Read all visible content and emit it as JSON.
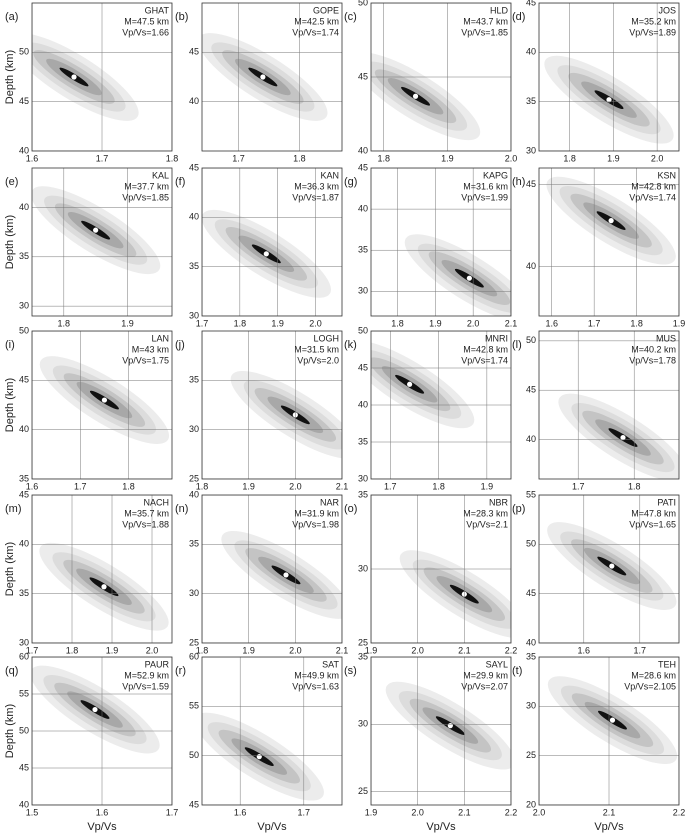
{
  "chart_data": [
    {
      "type": "scatter",
      "panel_label": "(a)",
      "station": "GHAT",
      "depth_label": "M=47.5 km",
      "ratio_label": "Vp/Vs=1.66",
      "ylabel": "Depth (km)",
      "x": [
        1.66
      ],
      "values": [
        47.5
      ],
      "xlim": [
        1.6,
        1.8
      ],
      "xticks": [
        1.6,
        1.7,
        1.8
      ],
      "ylim": [
        40,
        55
      ],
      "yticks": [
        40,
        45,
        50
      ],
      "grid": true
    },
    {
      "type": "scatter",
      "panel_label": "(b)",
      "station": "GOPE",
      "depth_label": "M=42.5 km",
      "ratio_label": "Vp/Vs=1.74",
      "x": [
        1.74
      ],
      "values": [
        42.5
      ],
      "xlim": [
        1.64,
        1.87
      ],
      "xticks": [
        1.7,
        1.8
      ],
      "ylim": [
        35,
        50
      ],
      "yticks": [
        40,
        45
      ],
      "grid": true
    },
    {
      "type": "scatter",
      "panel_label": "(c)",
      "station": "HLD",
      "depth_label": "M=43.7 km",
      "ratio_label": "Vp/Vs=1.85",
      "x": [
        1.85
      ],
      "values": [
        43.7
      ],
      "xlim": [
        1.78,
        2.0
      ],
      "xticks": [
        1.8,
        1.9,
        {
          "value": 2,
          "label": "2.0"
        }
      ],
      "ylim": [
        40,
        50
      ],
      "yticks": [
        40,
        45,
        50
      ],
      "grid": true
    },
    {
      "type": "scatter",
      "panel_label": "(d)",
      "station": "JOS",
      "depth_label": "M=35.2 km",
      "ratio_label": "Vp/Vs=1.89",
      "x": [
        1.89
      ],
      "values": [
        35.2
      ],
      "xlim": [
        1.73,
        2.05
      ],
      "xticks": [
        1.8,
        1.9,
        {
          "value": 2,
          "label": "2.0"
        }
      ],
      "ylim": [
        30,
        45
      ],
      "yticks": [
        30,
        35,
        40,
        45
      ],
      "grid": true
    },
    {
      "type": "scatter",
      "panel_label": "(e)",
      "station": "KAL",
      "depth_label": "M=37.7 km",
      "ratio_label": "Vp/Vs=1.85",
      "ylabel": "Depth (km)",
      "x": [
        1.85
      ],
      "values": [
        37.7
      ],
      "xlim": [
        1.75,
        1.97
      ],
      "xticks": [
        1.8,
        1.9
      ],
      "ylim": [
        29,
        44
      ],
      "yticks": [
        30,
        35,
        40
      ],
      "grid": true
    },
    {
      "type": "scatter",
      "panel_label": "(f)",
      "station": "KAN",
      "depth_label": "M=36.3 km",
      "ratio_label": "Vp/Vs=1.87",
      "x": [
        1.87
      ],
      "values": [
        36.3
      ],
      "xlim": [
        1.7,
        2.07
      ],
      "xticks": [
        1.7,
        1.8,
        1.9,
        {
          "value": 2,
          "label": "2.0"
        }
      ],
      "ylim": [
        30,
        45
      ],
      "yticks": [
        30,
        35,
        40,
        45
      ],
      "grid": true
    },
    {
      "type": "scatter",
      "panel_label": "(g)",
      "station": "KAPG",
      "depth_label": "M=31.6 km",
      "ratio_label": "Vp/Vs=1.99",
      "x": [
        1.99
      ],
      "values": [
        31.6
      ],
      "xlim": [
        1.73,
        2.1
      ],
      "xticks": [
        1.8,
        1.9,
        {
          "value": 2,
          "label": "2.0"
        },
        2.1
      ],
      "ylim": [
        27,
        45
      ],
      "yticks": [
        30,
        35,
        40,
        45
      ],
      "grid": true
    },
    {
      "type": "scatter",
      "panel_label": "(h)",
      "station": "KSN",
      "depth_label": "M=42.8 km",
      "ratio_label": "Vp/Vs=1.74",
      "x": [
        1.74
      ],
      "values": [
        42.8
      ],
      "xlim": [
        1.57,
        1.9
      ],
      "xticks": [
        1.6,
        1.7,
        1.8,
        1.9
      ],
      "ylim": [
        37,
        46
      ],
      "yticks": [
        40,
        45
      ],
      "grid": true
    },
    {
      "type": "scatter",
      "panel_label": "(i)",
      "station": "LAN",
      "depth_label": "M=43 km",
      "ratio_label": "Vp/Vs=1.75",
      "ylabel": "Depth (km)",
      "x": [
        1.75
      ],
      "values": [
        43
      ],
      "xlim": [
        1.6,
        1.89
      ],
      "xticks": [
        1.6,
        1.7,
        1.8
      ],
      "ylim": [
        35,
        50
      ],
      "yticks": [
        35,
        40,
        45,
        50
      ],
      "grid": true
    },
    {
      "type": "scatter",
      "panel_label": "(j)",
      "station": "LOGH",
      "depth_label": "M=31.5 km",
      "ratio_label": "Vp/Vs=2.0",
      "x": [
        2.0
      ],
      "values": [
        31.5
      ],
      "xlim": [
        1.8,
        2.1
      ],
      "xticks": [
        1.8,
        1.9,
        {
          "value": 2,
          "label": "2.0"
        },
        2.1
      ],
      "ylim": [
        25,
        40
      ],
      "yticks": [
        25,
        30,
        35
      ],
      "grid": true
    },
    {
      "type": "scatter",
      "panel_label": "(k)",
      "station": "MNRI",
      "depth_label": "M=42.8 km",
      "ratio_label": "Vp/Vs=1.74",
      "x": [
        1.74
      ],
      "values": [
        42.8
      ],
      "xlim": [
        1.66,
        1.95
      ],
      "xticks": [
        1.7,
        1.8,
        1.9
      ],
      "ylim": [
        30,
        50
      ],
      "yticks": [
        30,
        35,
        40,
        45,
        50
      ],
      "grid": true
    },
    {
      "type": "scatter",
      "panel_label": "(l)",
      "station": "MUS",
      "depth_label": "M=40.2 km",
      "ratio_label": "Vp/Vs=1.78",
      "x": [
        1.78
      ],
      "values": [
        40.2
      ],
      "xlim": [
        1.63,
        1.88
      ],
      "xticks": [
        1.7,
        1.8
      ],
      "ylim": [
        36,
        51
      ],
      "yticks": [
        40,
        45,
        50
      ],
      "grid": true
    },
    {
      "type": "scatter",
      "panel_label": "(m)",
      "station": "NACH",
      "depth_label": "M=35.7 km",
      "ratio_label": "Vp/Vs=1.88",
      "ylabel": "Depth (km)",
      "x": [
        1.88
      ],
      "values": [
        35.7
      ],
      "xlim": [
        1.7,
        2.05
      ],
      "xticks": [
        1.7,
        1.8,
        1.9,
        {
          "value": 2,
          "label": "2.0"
        }
      ],
      "ylim": [
        30,
        45
      ],
      "yticks": [
        30,
        35,
        40,
        45
      ],
      "grid": true
    },
    {
      "type": "scatter",
      "panel_label": "(n)",
      "station": "NAR",
      "depth_label": "M=31.9 km",
      "ratio_label": "Vp/Vs=1.98",
      "x": [
        1.98
      ],
      "values": [
        31.9
      ],
      "xlim": [
        1.8,
        2.1
      ],
      "xticks": [
        1.8,
        1.9,
        {
          "value": 2,
          "label": "2.0"
        },
        2.1
      ],
      "ylim": [
        25,
        40
      ],
      "yticks": [
        25,
        30,
        35,
        40
      ],
      "grid": true
    },
    {
      "type": "scatter",
      "panel_label": "(o)",
      "station": "NBR",
      "depth_label": "M=28.3 km",
      "ratio_label": "Vp/Vs=2.1",
      "x": [
        2.1
      ],
      "values": [
        28.3
      ],
      "xlim": [
        1.9,
        2.2
      ],
      "xticks": [
        1.9,
        {
          "value": 2,
          "label": "2.0"
        },
        2.1,
        2.2
      ],
      "ylim": [
        25,
        35
      ],
      "yticks": [
        25,
        30,
        35
      ],
      "grid": true
    },
    {
      "type": "scatter",
      "panel_label": "(p)",
      "station": "PATI",
      "depth_label": "M=47.8 km",
      "ratio_label": "Vp/Vs=1.65",
      "x": [
        1.65
      ],
      "values": [
        47.8
      ],
      "xlim": [
        1.52,
        1.77
      ],
      "xticks": [
        1.6,
        1.7
      ],
      "ylim": [
        40,
        55
      ],
      "yticks": [
        40,
        45,
        50,
        55
      ],
      "grid": true
    },
    {
      "type": "scatter",
      "panel_label": "(q)",
      "station": "PAUR",
      "depth_label": "M=52.9 km",
      "ratio_label": "Vp/Vs=1.59",
      "ylabel": "Depth (km)",
      "xlabel": "Vp/Vs",
      "x": [
        1.59
      ],
      "values": [
        52.9
      ],
      "xlim": [
        1.5,
        1.7
      ],
      "xticks": [
        1.5,
        1.6,
        1.7
      ],
      "ylim": [
        40,
        60
      ],
      "yticks": [
        40,
        45,
        50,
        55,
        60
      ],
      "grid": true
    },
    {
      "type": "scatter",
      "panel_label": "(r)",
      "station": "SAT",
      "depth_label": "M=49.9 km",
      "ratio_label": "Vp/Vs=1.63",
      "xlabel": "Vp/Vs",
      "x": [
        1.63
      ],
      "values": [
        49.9
      ],
      "xlim": [
        1.54,
        1.76
      ],
      "xticks": [
        1.6,
        1.7
      ],
      "ylim": [
        45,
        60
      ],
      "yticks": [
        45,
        50,
        55,
        60
      ],
      "grid": true
    },
    {
      "type": "scatter",
      "panel_label": "(s)",
      "station": "SAYL",
      "depth_label": "M=29.9 km",
      "ratio_label": "Vp/Vs=2.07",
      "xlabel": "Vp/Vs",
      "x": [
        2.07
      ],
      "values": [
        29.9
      ],
      "xlim": [
        1.9,
        2.2
      ],
      "xticks": [
        1.9,
        {
          "value": 2,
          "label": "2.0"
        },
        2.1,
        2.2
      ],
      "ylim": [
        24,
        35
      ],
      "yticks": [
        25,
        30,
        35
      ],
      "grid": true
    },
    {
      "type": "scatter",
      "panel_label": "(t)",
      "station": "TEH",
      "depth_label": "M=28.6 km",
      "ratio_label": "Vp/Vs=2.105",
      "xlabel": "Vp/Vs",
      "x": [
        2.105
      ],
      "values": [
        28.6
      ],
      "xlim": [
        2.0,
        2.2
      ],
      "xticks": [
        {
          "value": 2,
          "label": "2.0"
        },
        2.1,
        2.2
      ],
      "ylim": [
        20,
        35
      ],
      "yticks": [
        20,
        25,
        30,
        35
      ],
      "grid": true
    }
  ]
}
